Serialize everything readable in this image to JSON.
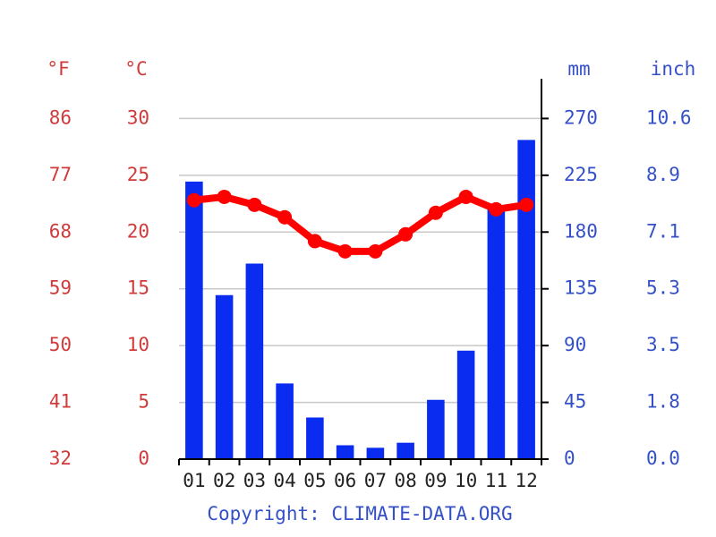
{
  "chart_data": {
    "type": "bar",
    "categories": [
      "01",
      "02",
      "03",
      "04",
      "05",
      "06",
      "07",
      "08",
      "09",
      "10",
      "11",
      "12"
    ],
    "series": [
      {
        "type": "bar",
        "axis": "y2",
        "color": "#0a2cf0",
        "values": [
          220,
          130,
          155,
          60,
          33,
          11,
          9,
          13,
          47,
          86,
          200,
          253
        ]
      },
      {
        "type": "line",
        "color": "#ff0000",
        "values": [
          22.8,
          23.1,
          22.4,
          21.3,
          19.2,
          18.3,
          18.3,
          19.8,
          21.7,
          23.1,
          22.0,
          22.4
        ]
      }
    ],
    "yunit": "°C",
    "yunit_alt": "°F",
    "y2unit": "mm",
    "y2unit_alt": "inch",
    "ylim": [
      0,
      33.5
    ],
    "yticks": [
      0,
      5,
      10,
      15,
      20,
      25,
      30
    ],
    "yticks_alt": [
      {
        "value": 0,
        "label": "32"
      },
      {
        "value": 5,
        "label": "41"
      },
      {
        "value": 10,
        "label": "50"
      },
      {
        "value": 15,
        "label": "59"
      },
      {
        "value": 20,
        "label": "68"
      },
      {
        "value": 25,
        "label": "77"
      },
      {
        "value": 30,
        "label": "86"
      }
    ],
    "y2lim": [
      0,
      301.5
    ],
    "y2ticks": [
      0,
      45,
      90,
      135,
      180,
      225,
      270
    ],
    "y2ticks_alt": [
      {
        "value": 0,
        "label": "0.0"
      },
      {
        "value": 45,
        "label": "1.8"
      },
      {
        "value": 90,
        "label": "3.5"
      },
      {
        "value": 135,
        "label": "5.3"
      },
      {
        "value": 180,
        "label": "7.1"
      },
      {
        "value": 225,
        "label": "8.9"
      },
      {
        "value": 270,
        "label": "10.6"
      }
    ],
    "grid": true,
    "copyright": "Copyright: CLIMATE-DATA.ORG"
  }
}
